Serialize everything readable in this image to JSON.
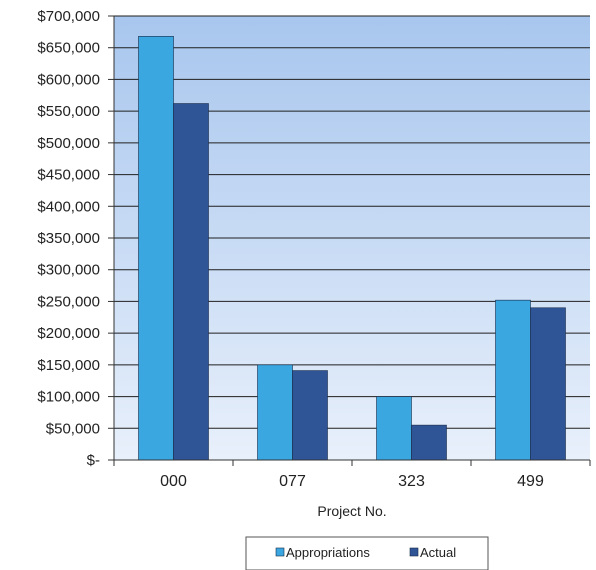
{
  "chart_data": {
    "type": "bar",
    "xlabel": "Project No.",
    "ylabel": "",
    "categories": [
      "000",
      "077",
      "323",
      "499"
    ],
    "ylim": [
      0,
      700000
    ],
    "ytick_step": 50000,
    "ytick_labels": [
      "$-",
      "$50,000",
      "$100,000",
      "$150,000",
      "$200,000",
      "$250,000",
      "$300,000",
      "$350,000",
      "$400,000",
      "$450,000",
      "$500,000",
      "$550,000",
      "$600,000",
      "$650,000",
      "$700,000"
    ],
    "grid": true,
    "legend_position": "bottom",
    "series": [
      {
        "name": "Appropriations",
        "color": "#3aa7e0",
        "values": [
          668000,
          150000,
          100000,
          252000
        ]
      },
      {
        "name": "Actual",
        "color": "#2f5597",
        "values": [
          562000,
          141000,
          55000,
          240000
        ]
      }
    ],
    "plot_background": [
      "#a8c6ee",
      "#e8f0fb"
    ]
  }
}
